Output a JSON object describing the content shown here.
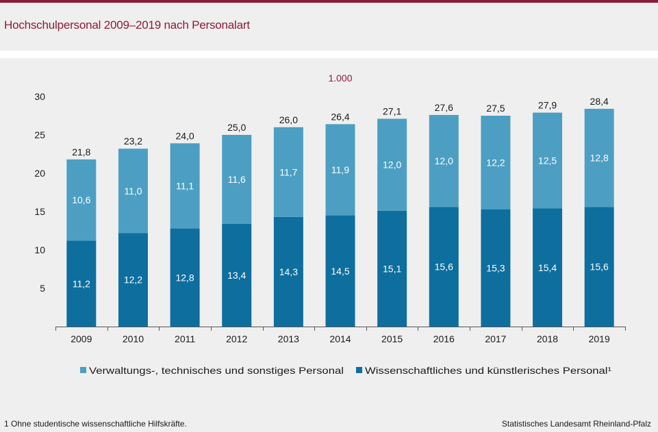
{
  "header": {
    "title": "Hochschulpersonal 2009–2019 nach Personalart"
  },
  "chart_data": {
    "type": "bar",
    "stacked": true,
    "unit_label": "1.000",
    "categories": [
      "2009",
      "2010",
      "2011",
      "2012",
      "2013",
      "2014",
      "2015",
      "2016",
      "2017",
      "2018",
      "2019"
    ],
    "series": [
      {
        "name": "Wissenschaftliches und künstlerisches Personal¹",
        "color": "#0e6e9e",
        "values": [
          11.2,
          12.2,
          12.8,
          13.4,
          14.3,
          14.5,
          15.1,
          15.6,
          15.3,
          15.4,
          15.6
        ],
        "labels": [
          "11,2",
          "12,2",
          "12,8",
          "13,4",
          "14,3",
          "14,5",
          "15,1",
          "15,6",
          "15,3",
          "15,4",
          "15,6"
        ]
      },
      {
        "name": "Verwaltungs-, technisches und sonstiges Personal",
        "color": "#4c9fc2",
        "values": [
          10.6,
          11.0,
          11.1,
          11.6,
          11.7,
          11.9,
          12.0,
          12.0,
          12.2,
          12.5,
          12.8
        ],
        "labels": [
          "10,6",
          "11,0",
          "11,1",
          "11,6",
          "11,7",
          "11,9",
          "12,0",
          "12,0",
          "12,2",
          "12,5",
          "12,8"
        ]
      }
    ],
    "totals": [
      21.8,
      23.2,
      24.0,
      25.0,
      26.0,
      26.4,
      27.1,
      27.6,
      27.5,
      27.9,
      28.4
    ],
    "total_labels": [
      "21,8",
      "23,2",
      "24,0",
      "25,0",
      "26,0",
      "26,4",
      "27,1",
      "27,6",
      "27,5",
      "27,9",
      "28,4"
    ],
    "ylim": [
      0,
      30
    ],
    "yticks": [
      5,
      10,
      15,
      20,
      25,
      30
    ],
    "ytick_labels": [
      "5",
      "10",
      "15",
      "20",
      "25",
      "30"
    ],
    "grid": false,
    "legend_position": "bottom"
  },
  "footer": {
    "footnote": "1 Ohne studentische wissenschaftliche Hilfskräfte.",
    "source": "Statistisches Landesamt Rheinland-Pfalz"
  }
}
